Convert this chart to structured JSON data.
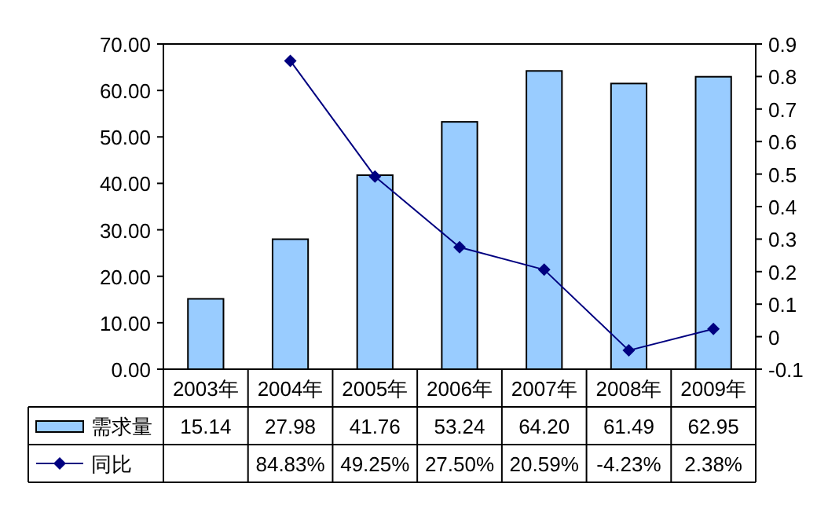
{
  "chart_data": {
    "type": "bar",
    "categories": [
      "2003年",
      "2004年",
      "2005年",
      "2006年",
      "2007年",
      "2008年",
      "2009年"
    ],
    "series": [
      {
        "name": "需求量",
        "color": "#99ccff",
        "values": [
          15.14,
          27.98,
          41.76,
          53.24,
          64.2,
          61.49,
          62.95
        ],
        "value_labels": [
          "15.14",
          "27.98",
          "41.76",
          "53.24",
          "64.20",
          "61.49",
          "62.95"
        ]
      },
      {
        "name": "同比",
        "type": "line",
        "axis": "y2",
        "color": "#000080",
        "marker": "diamond",
        "line_style": "solid",
        "values": [
          null,
          0.8483,
          0.4925,
          0.275,
          0.2059,
          -0.0423,
          0.0238
        ],
        "value_labels": [
          null,
          "84.83%",
          "49.25%",
          "27.50%",
          "20.59%",
          "-4.23%",
          "2.38%"
        ]
      }
    ],
    "ylim": [
      0,
      70
    ],
    "yticks": [
      {
        "value": 0,
        "label": "0.00"
      },
      {
        "value": 10,
        "label": "10.00"
      },
      {
        "value": 20,
        "label": "20.00"
      },
      {
        "value": 30,
        "label": "30.00"
      },
      {
        "value": 40,
        "label": "40.00"
      },
      {
        "value": 50,
        "label": "50.00"
      },
      {
        "value": 60,
        "label": "60.00"
      },
      {
        "value": 70,
        "label": "70.00"
      }
    ],
    "y2lim": [
      -0.1,
      0.9
    ],
    "y2ticks": [
      -0.1,
      0,
      0.1,
      0.2,
      0.3,
      0.4,
      0.5,
      0.6,
      0.7,
      0.8,
      0.9
    ],
    "legend": "bottom",
    "grid": false
  }
}
